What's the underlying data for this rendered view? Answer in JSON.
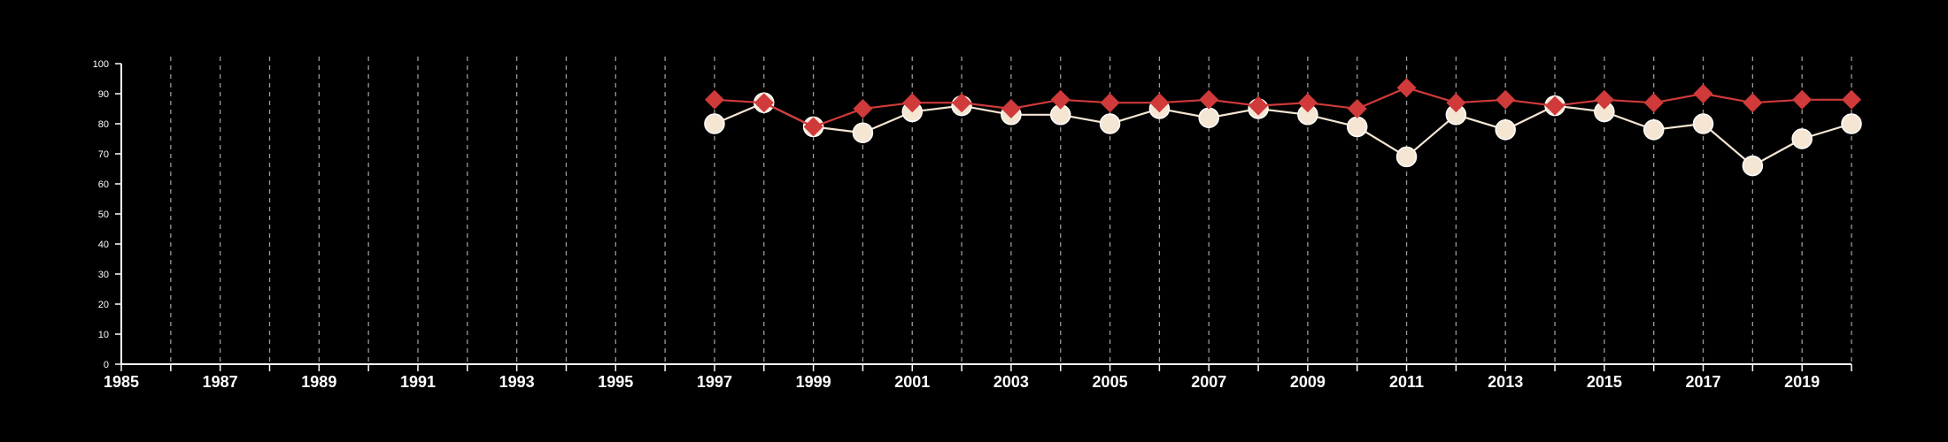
{
  "chart_data": {
    "type": "line",
    "title": "",
    "xlabel": "",
    "ylabel": "",
    "xlim": [
      1985,
      2020
    ],
    "ylim": [
      0,
      100
    ],
    "x_ticks": [
      1985,
      1987,
      1989,
      1991,
      1993,
      1995,
      1997,
      1999,
      2001,
      2003,
      2005,
      2007,
      2009,
      2011,
      2013,
      2015,
      2017,
      2019
    ],
    "y_ticks": [
      0,
      10,
      20,
      30,
      40,
      50,
      60,
      70,
      80,
      90,
      100
    ],
    "vertical_grid": "dashed, every year",
    "legend": "none",
    "series": [
      {
        "color": "#f5e6d3",
        "marker": "circle",
        "x": [
          1997,
          1998,
          1999,
          2000,
          2001,
          2002,
          2003,
          2004,
          2005,
          2006,
          2007,
          2008,
          2009,
          2010,
          2011,
          2012,
          2013,
          2014,
          2015,
          2016,
          2017,
          2018,
          2019,
          2020
        ],
        "values": [
          80,
          87,
          79,
          77,
          84,
          86,
          83,
          83,
          80,
          85,
          82,
          85,
          83,
          79,
          69,
          83,
          78,
          86,
          84,
          78,
          80,
          66,
          75,
          80
        ]
      },
      {
        "color": "#d03a3a",
        "marker": "diamond",
        "x": [
          1997,
          1998,
          1999,
          2000,
          2001,
          2002,
          2003,
          2004,
          2005,
          2006,
          2007,
          2008,
          2009,
          2010,
          2011,
          2012,
          2013,
          2014,
          2015,
          2016,
          2017,
          2018,
          2019,
          2020
        ],
        "values": [
          88,
          87,
          79,
          85,
          87,
          87,
          85,
          88,
          87,
          87,
          88,
          86,
          87,
          85,
          92,
          87,
          88,
          86,
          88,
          87,
          90,
          87,
          88,
          88
        ]
      }
    ]
  }
}
